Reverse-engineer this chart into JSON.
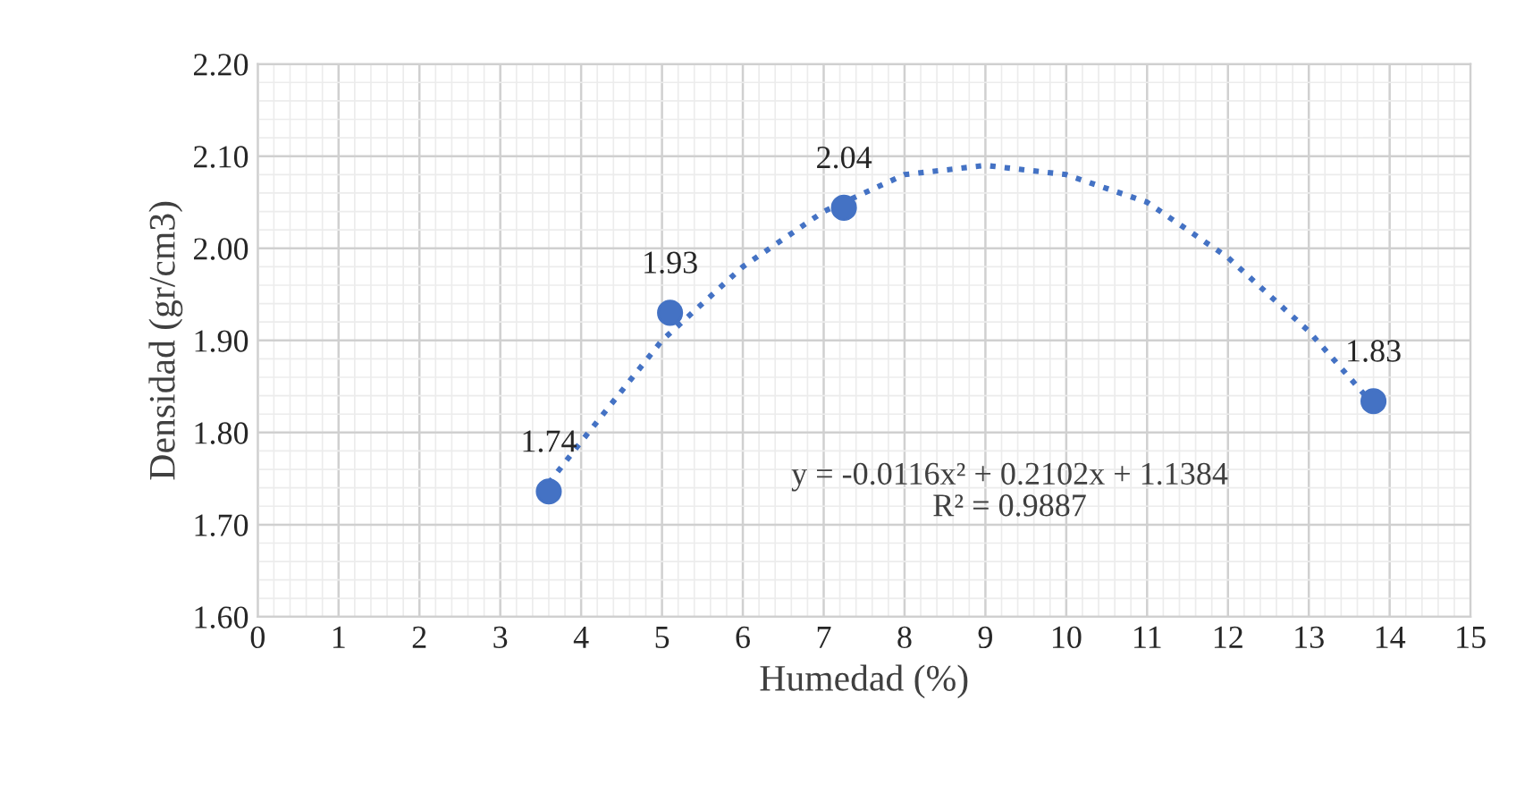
{
  "chart_data": {
    "type": "scatter",
    "xlabel": "Humedad (%)",
    "ylabel": "Densidad (gr/cm3)",
    "xlim": [
      0,
      15
    ],
    "xticks": [
      0,
      1,
      2,
      3,
      4,
      5,
      6,
      7,
      8,
      9,
      10,
      11,
      12,
      13,
      14,
      15
    ],
    "ylim": [
      1.6,
      2.2
    ],
    "yticks": [
      {
        "value": 1.6,
        "label": "1.60"
      },
      {
        "value": 1.7,
        "label": "1.70"
      },
      {
        "value": 1.8,
        "label": "1.80"
      },
      {
        "value": 1.9,
        "label": "1.90"
      },
      {
        "value": 2.0,
        "label": "2.00"
      },
      {
        "value": 2.1,
        "label": "2.10"
      },
      {
        "value": 2.2,
        "label": "2.20"
      }
    ],
    "grid": true,
    "series": [
      {
        "marker": "circle",
        "color": "#4472c4",
        "x": [
          3.6,
          5.1,
          7.25,
          13.8
        ],
        "values": [
          1.736,
          1.93,
          2.044,
          1.834
        ],
        "value_labels": [
          "1.74",
          "1.93",
          "2.04",
          "1.83"
        ]
      },
      {
        "type": "line",
        "color": "#4472c4",
        "line_style": "dotted",
        "x": [
          3.6,
          4,
          5,
          6,
          7,
          8,
          9,
          10,
          11,
          12,
          13,
          13.8
        ],
        "values": [
          1.745,
          1.79,
          1.9,
          1.98,
          2.04,
          2.08,
          2.09,
          2.08,
          2.05,
          1.99,
          1.91,
          1.83
        ]
      }
    ],
    "annotations": [
      {
        "text": "y = -0.0116x² + 0.2102x + 1.1384\nR² = 0.9887"
      }
    ]
  }
}
